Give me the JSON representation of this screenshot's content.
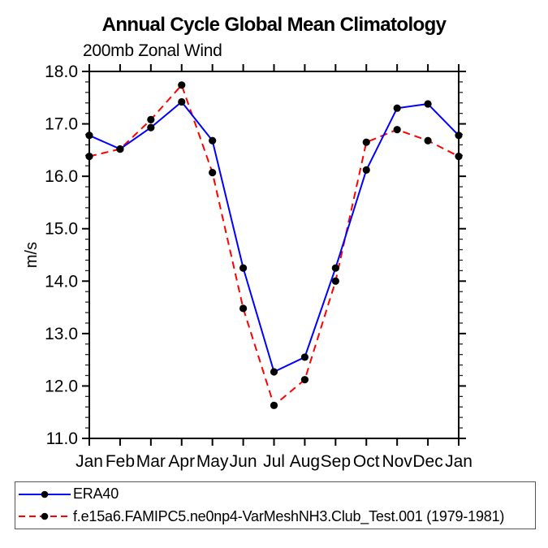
{
  "chart": {
    "title": "Annual Cycle Global Mean Climatology",
    "subtitle": "200mb Zonal Wind",
    "ylabel": "m/s"
  },
  "legend": {
    "position": "bottom",
    "items": [
      {
        "label": "ERA40",
        "color": "#0000ff",
        "dash": false,
        "marker_color": "#000000"
      },
      {
        "label": "f.e15a6.FAMIPC5.ne0np4-VarMeshNH3.Club_Test.001 (1979-1981)",
        "color": "#ff0000",
        "dash": true,
        "marker_color": "#000000"
      }
    ]
  },
  "chart_data": {
    "type": "line",
    "title": "Annual Cycle Global Mean Climatology",
    "subtitle": "200mb Zonal Wind",
    "xlabel": "",
    "ylabel": "m/s",
    "categories": [
      "Jan",
      "Feb",
      "Mar",
      "Apr",
      "May",
      "Jun",
      "Jul",
      "Aug",
      "Sep",
      "Oct",
      "Nov",
      "Dec",
      "Jan"
    ],
    "series": [
      {
        "name": "ERA40",
        "color": "#0000ff",
        "style": "solid",
        "marker": "filled-circle",
        "marker_color": "#000000",
        "values": [
          16.78,
          16.52,
          16.93,
          17.42,
          16.68,
          14.25,
          12.27,
          12.55,
          14.25,
          16.12,
          17.3,
          17.38,
          16.78
        ]
      },
      {
        "name": "f.e15a6.FAMIPC5.ne0np4-VarMeshNH3.Club_Test.001 (1979-1981)",
        "color": "#ff0000",
        "style": "dashed",
        "marker": "filled-circle",
        "marker_color": "#000000",
        "values": [
          16.38,
          16.52,
          17.08,
          17.74,
          16.07,
          13.48,
          11.63,
          12.12,
          14.0,
          16.65,
          16.89,
          16.68,
          16.38
        ]
      }
    ],
    "ylim": [
      11.0,
      18.0
    ],
    "ytick_interval": 1.0,
    "yminor_interval": 0.2,
    "ytick_labels": [
      "11.0",
      "12.0",
      "13.0",
      "14.0",
      "15.0",
      "16.0",
      "17.0",
      "18.0"
    ],
    "grid": false,
    "axis_color": "#000000",
    "legend_position": "bottom"
  }
}
